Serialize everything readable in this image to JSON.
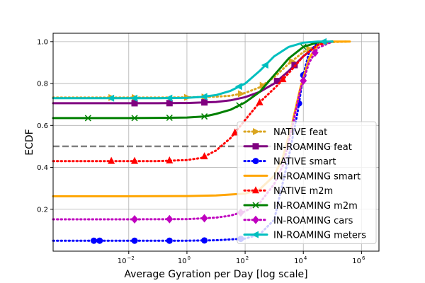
{
  "chart_data": {
    "type": "line",
    "xlabel": "Average Gyration per Day [log scale]",
    "ylabel": "ECDF",
    "xscale": "log10",
    "xlim_log10": [
      -4.6,
      6.6
    ],
    "ylim": [
      0.0,
      1.04
    ],
    "x_ticks": [
      {
        "exp": -2,
        "label": "10",
        "sup": "−2"
      },
      {
        "exp": 0,
        "label": "10",
        "sup": "0"
      },
      {
        "exp": 2,
        "label": "10",
        "sup": "2"
      },
      {
        "exp": 4,
        "label": "10",
        "sup": "4"
      },
      {
        "exp": 6,
        "label": "10",
        "sup": "6"
      }
    ],
    "y_ticks": [
      {
        "value": 0.2,
        "label": "0.2"
      },
      {
        "value": 0.4,
        "label": "0.4"
      },
      {
        "value": 0.6,
        "label": "0.6"
      },
      {
        "value": 0.8,
        "label": "0.8"
      },
      {
        "value": 1.0,
        "label": "1.0"
      }
    ],
    "grid": true,
    "legend_position": "lower-right",
    "reference_line": {
      "y": 0.5,
      "color": "#808080",
      "dash": "dashed"
    },
    "series": [
      {
        "name": "NATIVE feat",
        "color": "#DAA520",
        "linestyle": "dotted",
        "marker": "triangle-right",
        "x_log": [
          -4.6,
          -2.5,
          -1.0,
          0.0,
          1.0,
          1.5,
          2.0,
          2.5,
          3.0,
          3.5,
          4.0,
          4.5,
          5.0,
          5.5
        ],
        "y": [
          0.733,
          0.733,
          0.733,
          0.734,
          0.737,
          0.742,
          0.755,
          0.782,
          0.83,
          0.895,
          0.95,
          0.985,
          0.998,
          1.0
        ],
        "markers_x_log": [
          -2.6,
          -1.8,
          0.0,
          0.6,
          1.85,
          2.6,
          3.6,
          4.2
        ]
      },
      {
        "name": "IN-ROAMING feat",
        "color": "#800080",
        "linestyle": "solid",
        "marker": "square",
        "x_log": [
          -4.6,
          -2.0,
          -1.0,
          0.0,
          1.0,
          1.5,
          2.0,
          2.5,
          3.0,
          3.5,
          4.0,
          4.5,
          5.0
        ],
        "y": [
          0.706,
          0.706,
          0.706,
          0.707,
          0.712,
          0.72,
          0.735,
          0.76,
          0.8,
          0.86,
          0.93,
          0.985,
          1.0
        ],
        "markers_x_log": [
          -1.8,
          -0.6,
          0.6,
          3.1,
          3.7
        ]
      },
      {
        "name": "NATIVE smart",
        "color": "#0000FF",
        "linestyle": "dotted",
        "marker": "circle",
        "x_log": [
          -4.6,
          -2.0,
          0.0,
          1.0,
          2.0,
          2.5,
          3.0,
          3.5,
          3.8,
          4.0,
          4.2,
          4.5,
          5.0
        ],
        "y": [
          0.05,
          0.05,
          0.05,
          0.052,
          0.06,
          0.08,
          0.15,
          0.45,
          0.66,
          0.84,
          0.95,
          0.995,
          1.0
        ],
        "markers_x_log": [
          -3.2,
          -3.0,
          -1.8,
          -0.6,
          0.6,
          1.85,
          3.85,
          4.0
        ]
      },
      {
        "name": "IN-ROAMING smart",
        "color": "#FFA500",
        "linestyle": "solid",
        "marker": "none",
        "x_log": [
          -4.6,
          -2.0,
          0.0,
          1.0,
          2.0,
          2.5,
          3.0,
          3.3,
          3.6,
          3.9,
          4.2,
          4.5,
          5.0,
          5.6
        ],
        "y": [
          0.262,
          0.262,
          0.263,
          0.266,
          0.275,
          0.295,
          0.36,
          0.45,
          0.6,
          0.78,
          0.92,
          0.985,
          1.0,
          1.0
        ],
        "markers_x_log": []
      },
      {
        "name": "NATIVE m2m",
        "color": "#FF0000",
        "linestyle": "dotted",
        "marker": "triangle-up",
        "x_log": [
          -4.6,
          -1.0,
          0.0,
          0.5,
          1.0,
          1.5,
          1.85,
          2.2,
          2.5,
          2.8,
          3.1,
          3.5,
          4.0,
          4.5,
          5.0
        ],
        "y": [
          0.43,
          0.43,
          0.435,
          0.445,
          0.48,
          0.54,
          0.6,
          0.66,
          0.71,
          0.75,
          0.79,
          0.85,
          0.93,
          0.985,
          1.0
        ],
        "markers_x_log": [
          -2.6,
          -1.8,
          -0.6,
          0.6,
          1.65,
          2.5,
          3.3
        ]
      },
      {
        "name": "IN-ROAMING m2m",
        "color": "#008000",
        "linestyle": "solid",
        "marker": "x",
        "x_log": [
          -4.6,
          -2.0,
          -1.0,
          0.0,
          0.6,
          1.0,
          1.5,
          2.0,
          2.5,
          3.0,
          3.5,
          4.0,
          4.5,
          5.0
        ],
        "y": [
          0.635,
          0.635,
          0.636,
          0.638,
          0.643,
          0.655,
          0.675,
          0.71,
          0.76,
          0.84,
          0.92,
          0.975,
          0.997,
          1.0
        ],
        "markers_x_log": [
          -3.4,
          -1.8,
          -0.6,
          0.6,
          1.8,
          4.0
        ]
      },
      {
        "name": "IN-ROAMING cars",
        "color": "#BF00BF",
        "linestyle": "dotted",
        "marker": "diamond",
        "x_log": [
          -4.6,
          -2.0,
          0.0,
          1.0,
          1.5,
          2.0,
          2.5,
          3.0,
          3.3,
          3.6,
          3.9,
          4.2,
          4.5,
          5.0
        ],
        "y": [
          0.152,
          0.152,
          0.153,
          0.16,
          0.17,
          0.19,
          0.23,
          0.32,
          0.41,
          0.58,
          0.77,
          0.9,
          0.97,
          1.0
        ],
        "markers_x_log": [
          -1.8,
          -0.6,
          0.6,
          1.85,
          4.0,
          4.4
        ]
      },
      {
        "name": "IN-ROAMING meters",
        "color": "#00BFBF",
        "linestyle": "solid",
        "marker": "triangle-left",
        "x_log": [
          -4.6,
          -1.0,
          0.0,
          0.5,
          1.0,
          1.5,
          2.0,
          2.5,
          3.0,
          3.5,
          4.0,
          4.5,
          5.0
        ],
        "y": [
          0.73,
          0.73,
          0.732,
          0.736,
          0.745,
          0.765,
          0.8,
          0.86,
          0.93,
          0.975,
          0.995,
          1.0,
          1.0
        ],
        "markers_x_log": [
          -2.6,
          -1.8,
          -0.6,
          0.6,
          1.8,
          2.7,
          4.7
        ]
      }
    ]
  }
}
